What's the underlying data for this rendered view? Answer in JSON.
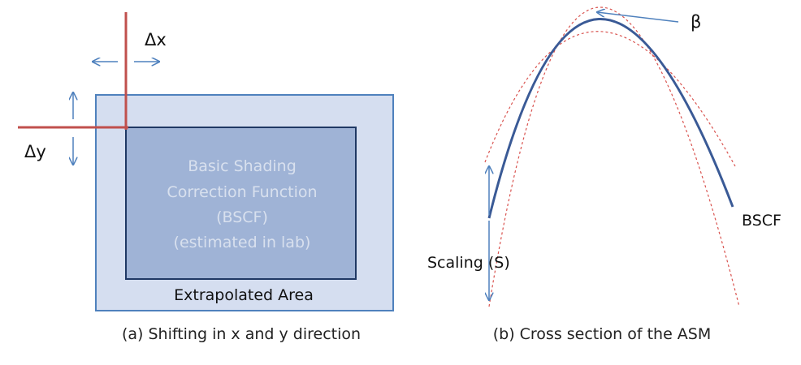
{
  "panel_a": {
    "delta_x": "Δx",
    "delta_y": "Δy",
    "inner_lines": [
      "Basic Shading",
      "Correction Function",
      "(BSCF)",
      "(estimated in lab)"
    ],
    "outer_label": "Extrapolated Area",
    "caption": "(a) Shifting in x and y direction"
  },
  "panel_b": {
    "beta": "β",
    "bscf": "BSCF",
    "scaling": "Scaling (S)",
    "caption": "(b) Cross section of the ASM"
  },
  "colors": {
    "outer_fill": "#d5def0",
    "inner_fill": "#9fb3d6",
    "frame_stroke": "#4f81bd",
    "inner_stroke": "#1f3864",
    "shift_line": "#c0504d",
    "arrow": "#4f81bd",
    "curve": "#3a5a96",
    "dashed": "#d9534f"
  }
}
